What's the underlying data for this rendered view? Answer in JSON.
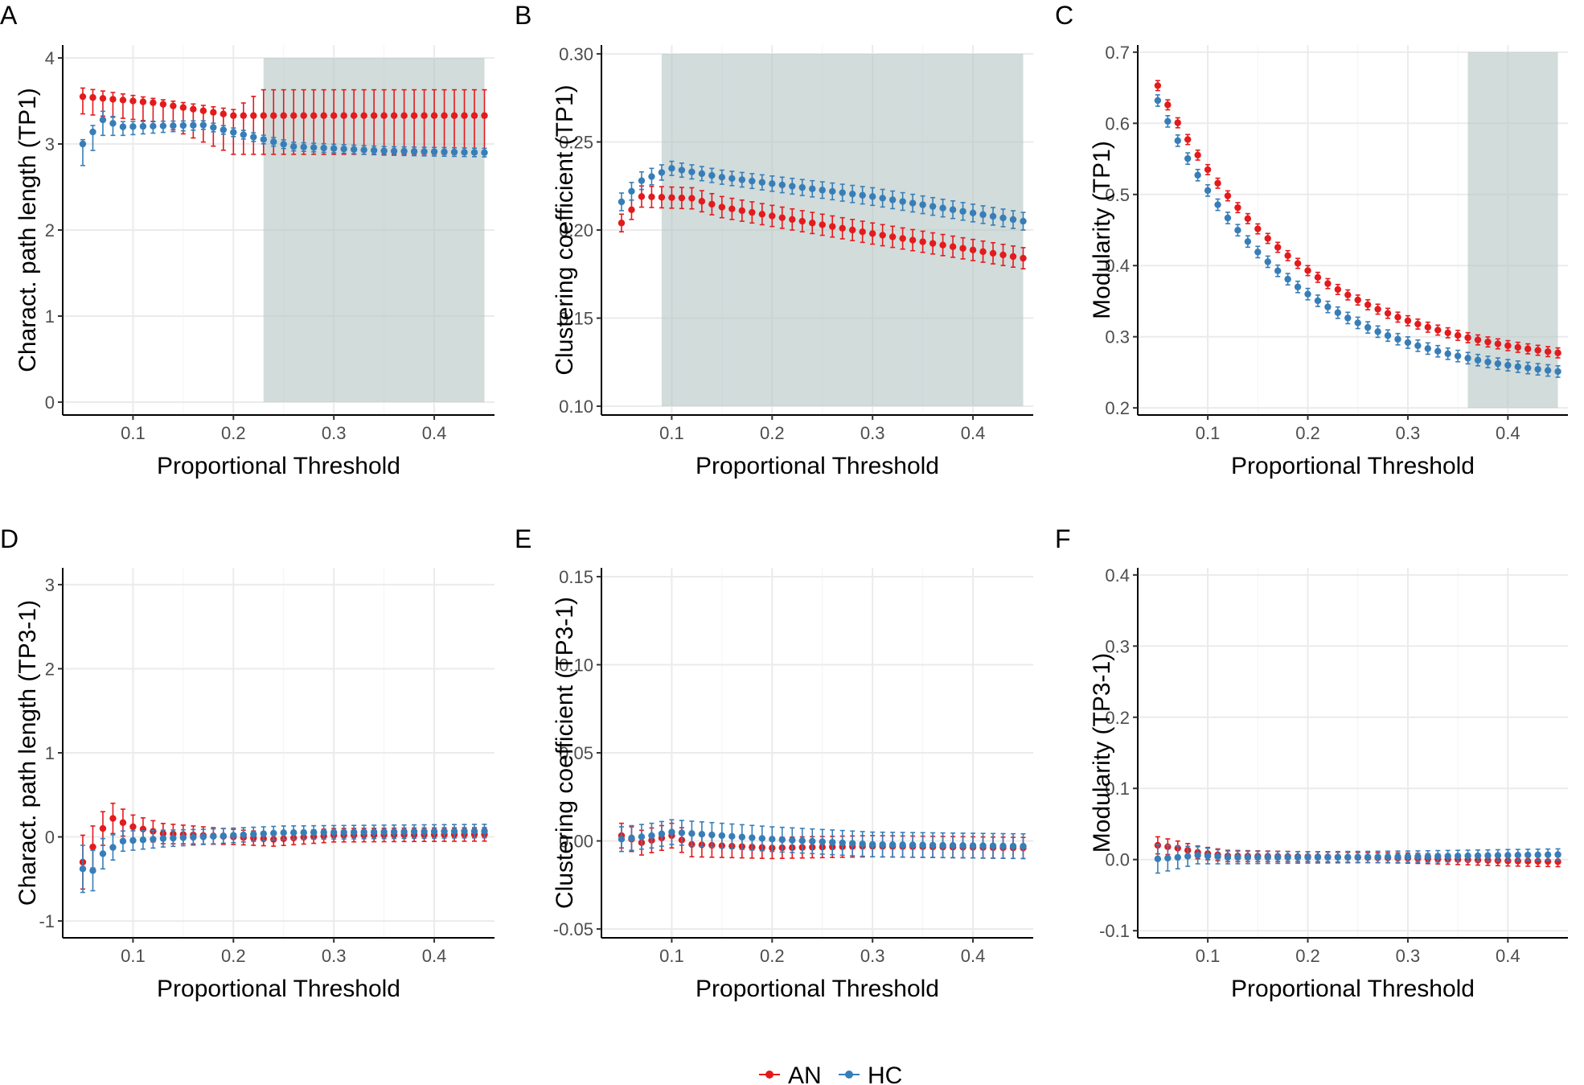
{
  "colors": {
    "AN": "#e41a1c",
    "HC": "#377eb8",
    "shade": "#b4c4c3",
    "grid": "#ebebeb"
  },
  "legend": {
    "entries": [
      {
        "key": "AN",
        "label": "AN"
      },
      {
        "key": "HC",
        "label": "HC"
      }
    ]
  },
  "chart_data": [
    {
      "panel": "A",
      "type": "scatter",
      "row": 0,
      "col": 0,
      "xlabel": "Proportional Threshold",
      "ylabel": "Charact. path length (TP1)",
      "xlim": [
        0.03,
        0.46
      ],
      "ylim": [
        -0.15,
        4.15
      ],
      "xticks": [
        0.1,
        0.2,
        0.3,
        0.4
      ],
      "xtick_labels": [
        "0.1",
        "0.2",
        "0.3",
        "0.4"
      ],
      "yticks": [
        0,
        1,
        2,
        3,
        4
      ],
      "ytick_labels": [
        "0",
        "1",
        "2",
        "3",
        "4"
      ],
      "shade": [
        0.23,
        0.45
      ],
      "x": {
        "start": 0.05,
        "step": 0.01,
        "count": 41
      },
      "series": [
        {
          "name": "AN",
          "kind": "segments",
          "segments": [
            [
              0.05,
              3.55,
              0.2,
              0.1
            ],
            [
              0.12,
              3.48,
              0.22,
              0.05
            ],
            [
              0.2,
              3.33,
              0.45,
              0.07
            ],
            [
              0.23,
              3.33,
              0.45,
              0.3
            ]
          ]
        },
        {
          "name": "HC",
          "kind": "segments",
          "segments": [
            [
              0.05,
              3.0,
              0.25,
              0.05
            ],
            [
              0.07,
              3.28,
              0.18,
              0.1
            ],
            [
              0.09,
              3.2,
              0.1,
              0.06
            ],
            [
              0.17,
              3.22,
              0.05,
              0.05
            ],
            [
              0.22,
              3.08,
              0.05,
              0.05
            ],
            [
              0.26,
              2.97,
              0.05,
              0.05
            ],
            [
              0.35,
              2.92,
              0.05,
              0.05
            ],
            [
              0.45,
              2.9,
              0.05,
              0.05
            ]
          ]
        }
      ]
    },
    {
      "panel": "B",
      "type": "scatter",
      "row": 0,
      "col": 1,
      "xlabel": "Proportional Threshold",
      "ylabel": "Clustering coefficient (TP1)",
      "xlim": [
        0.03,
        0.46
      ],
      "ylim": [
        0.095,
        0.305
      ],
      "xticks": [
        0.1,
        0.2,
        0.3,
        0.4
      ],
      "xtick_labels": [
        "0.1",
        "0.2",
        "0.3",
        "0.4"
      ],
      "yticks": [
        0.1,
        0.15,
        0.2,
        0.25,
        0.3
      ],
      "ytick_labels": [
        "0.10",
        "0.15",
        "0.20",
        "0.25",
        "0.30"
      ],
      "shade": [
        0.09,
        0.45
      ],
      "x": {
        "start": 0.05,
        "step": 0.01,
        "count": 41
      },
      "series": [
        {
          "name": "AN",
          "kind": "segments",
          "segments": [
            [
              0.05,
              0.204,
              0.005,
              0.005
            ],
            [
              0.07,
              0.219,
              0.006,
              0.006
            ],
            [
              0.12,
              0.218,
              0.006,
              0.006
            ],
            [
              0.15,
              0.213,
              0.006,
              0.006
            ],
            [
              0.3,
              0.198,
              0.006,
              0.006
            ],
            [
              0.45,
              0.184,
              0.006,
              0.006
            ]
          ]
        },
        {
          "name": "HC",
          "kind": "segments",
          "segments": [
            [
              0.05,
              0.216,
              0.005,
              0.005
            ],
            [
              0.07,
              0.228,
              0.005,
              0.005
            ],
            [
              0.1,
              0.235,
              0.004,
              0.004
            ],
            [
              0.15,
              0.23,
              0.004,
              0.004
            ],
            [
              0.3,
              0.219,
              0.005,
              0.005
            ],
            [
              0.45,
              0.205,
              0.005,
              0.005
            ]
          ]
        }
      ]
    },
    {
      "panel": "C",
      "type": "scatter",
      "row": 0,
      "col": 2,
      "xlabel": "Proportional Threshold",
      "ylabel": "Modularity (TP1)",
      "xlim": [
        0.03,
        0.46
      ],
      "ylim": [
        0.19,
        0.71
      ],
      "xticks": [
        0.1,
        0.2,
        0.3,
        0.4
      ],
      "xtick_labels": [
        "0.1",
        "0.2",
        "0.3",
        "0.4"
      ],
      "yticks": [
        0.2,
        0.3,
        0.4,
        0.5,
        0.6,
        0.7
      ],
      "ytick_labels": [
        "0.2",
        "0.3",
        "0.4",
        "0.5",
        "0.6",
        "0.7"
      ],
      "shade": [
        0.36,
        0.45
      ],
      "x": {
        "start": 0.05,
        "step": 0.01,
        "count": 41
      },
      "series": [
        {
          "name": "AN",
          "kind": "decay",
          "a": 0.253,
          "b": 0.4,
          "k": 7.0,
          "err": 0.007
        },
        {
          "name": "HC",
          "kind": "decay",
          "a": 0.232,
          "b": 0.4,
          "k": 7.6,
          "err": 0.008
        }
      ]
    },
    {
      "panel": "D",
      "type": "scatter",
      "row": 1,
      "col": 0,
      "xlabel": "Proportional Threshold",
      "ylabel": "Charact. path length (TP3-1)",
      "xlim": [
        0.03,
        0.46
      ],
      "ylim": [
        -1.2,
        3.2
      ],
      "xticks": [
        0.1,
        0.2,
        0.3,
        0.4
      ],
      "xtick_labels": [
        "0.1",
        "0.2",
        "0.3",
        "0.4"
      ],
      "yticks": [
        -1,
        0,
        1,
        2,
        3
      ],
      "ytick_labels": [
        "-1",
        "0",
        "1",
        "2",
        "3"
      ],
      "x": {
        "start": 0.05,
        "step": 0.01,
        "count": 41
      },
      "series": [
        {
          "name": "AN",
          "kind": "segments",
          "segments": [
            [
              0.05,
              -0.3,
              0.32,
              0.32
            ],
            [
              0.06,
              -0.12,
              0.25,
              0.25
            ],
            [
              0.07,
              0.1,
              0.2,
              0.2
            ],
            [
              0.08,
              0.22,
              0.18,
              0.18
            ],
            [
              0.1,
              0.12,
              0.14,
              0.14
            ],
            [
              0.13,
              0.04,
              0.12,
              0.12
            ],
            [
              0.2,
              0.0,
              0.09,
              0.09
            ],
            [
              0.24,
              -0.03,
              0.08,
              0.08
            ],
            [
              0.3,
              0.02,
              0.08,
              0.08
            ],
            [
              0.45,
              0.03,
              0.08,
              0.08
            ]
          ]
        },
        {
          "name": "HC",
          "kind": "segments",
          "segments": [
            [
              0.05,
              -0.38,
              0.28,
              0.28
            ],
            [
              0.06,
              -0.4,
              0.24,
              0.24
            ],
            [
              0.07,
              -0.2,
              0.18,
              0.18
            ],
            [
              0.09,
              -0.05,
              0.12,
              0.12
            ],
            [
              0.13,
              -0.02,
              0.1,
              0.1
            ],
            [
              0.17,
              0.0,
              0.09,
              0.09
            ],
            [
              0.25,
              0.05,
              0.08,
              0.08
            ],
            [
              0.35,
              0.06,
              0.08,
              0.08
            ],
            [
              0.45,
              0.07,
              0.08,
              0.08
            ]
          ]
        }
      ]
    },
    {
      "panel": "E",
      "type": "scatter",
      "row": 1,
      "col": 1,
      "xlabel": "Proportional Threshold",
      "ylabel": "Clustering coefficient (TP3-1)",
      "xlim": [
        0.03,
        0.46
      ],
      "ylim": [
        -0.055,
        0.155
      ],
      "xticks": [
        0.1,
        0.2,
        0.3,
        0.4
      ],
      "xtick_labels": [
        "0.1",
        "0.2",
        "0.3",
        "0.4"
      ],
      "yticks": [
        -0.05,
        0.0,
        0.05,
        0.1,
        0.15
      ],
      "ytick_labels": [
        "-0.05",
        "0.00",
        "0.05",
        "0.10",
        "0.15"
      ],
      "x": {
        "start": 0.05,
        "step": 0.01,
        "count": 41
      },
      "series": [
        {
          "name": "AN",
          "kind": "segments",
          "segments": [
            [
              0.05,
              0.003,
              0.007,
              0.007
            ],
            [
              0.07,
              -0.001,
              0.007,
              0.007
            ],
            [
              0.1,
              0.003,
              0.007,
              0.007
            ],
            [
              0.12,
              -0.002,
              0.007,
              0.007
            ],
            [
              0.2,
              -0.004,
              0.006,
              0.006
            ],
            [
              0.3,
              -0.003,
              0.006,
              0.006
            ],
            [
              0.45,
              -0.004,
              0.006,
              0.006
            ]
          ]
        },
        {
          "name": "HC",
          "kind": "segments",
          "segments": [
            [
              0.05,
              0.001,
              0.007,
              0.007
            ],
            [
              0.08,
              0.003,
              0.007,
              0.007
            ],
            [
              0.1,
              0.005,
              0.007,
              0.007
            ],
            [
              0.15,
              0.003,
              0.007,
              0.007
            ],
            [
              0.2,
              0.001,
              0.007,
              0.007
            ],
            [
              0.3,
              -0.002,
              0.007,
              0.007
            ],
            [
              0.45,
              -0.003,
              0.007,
              0.007
            ]
          ]
        }
      ]
    },
    {
      "panel": "F",
      "type": "scatter",
      "row": 1,
      "col": 2,
      "xlabel": "Proportional Threshold",
      "ylabel": "Modularity (TP3-1)",
      "xlim": [
        0.03,
        0.46
      ],
      "ylim": [
        -0.11,
        0.41
      ],
      "xticks": [
        0.1,
        0.2,
        0.3,
        0.4
      ],
      "xtick_labels": [
        "0.1",
        "0.2",
        "0.3",
        "0.4"
      ],
      "yticks": [
        -0.1,
        0.0,
        0.1,
        0.2,
        0.3,
        0.4
      ],
      "ytick_labels": [
        "-0.1",
        "0.0",
        "0.1",
        "0.2",
        "0.3",
        "0.4"
      ],
      "x": {
        "start": 0.05,
        "step": 0.01,
        "count": 41
      },
      "series": [
        {
          "name": "AN",
          "kind": "segments",
          "segments": [
            [
              0.05,
              0.02,
              0.012,
              0.012
            ],
            [
              0.07,
              0.016,
              0.01,
              0.01
            ],
            [
              0.09,
              0.01,
              0.009,
              0.009
            ],
            [
              0.12,
              0.005,
              0.008,
              0.008
            ],
            [
              0.2,
              0.004,
              0.007,
              0.007
            ],
            [
              0.3,
              0.002,
              0.007,
              0.007
            ],
            [
              0.4,
              -0.002,
              0.007,
              0.007
            ],
            [
              0.45,
              -0.003,
              0.007,
              0.007
            ]
          ]
        },
        {
          "name": "HC",
          "kind": "segments",
          "segments": [
            [
              0.05,
              0.001,
              0.02,
              0.02
            ],
            [
              0.07,
              0.003,
              0.016,
              0.016
            ],
            [
              0.09,
              0.006,
              0.012,
              0.012
            ],
            [
              0.12,
              0.003,
              0.009,
              0.009
            ],
            [
              0.2,
              0.003,
              0.008,
              0.008
            ],
            [
              0.3,
              0.004,
              0.008,
              0.008
            ],
            [
              0.4,
              0.006,
              0.008,
              0.008
            ],
            [
              0.45,
              0.007,
              0.008,
              0.008
            ]
          ]
        }
      ]
    }
  ]
}
